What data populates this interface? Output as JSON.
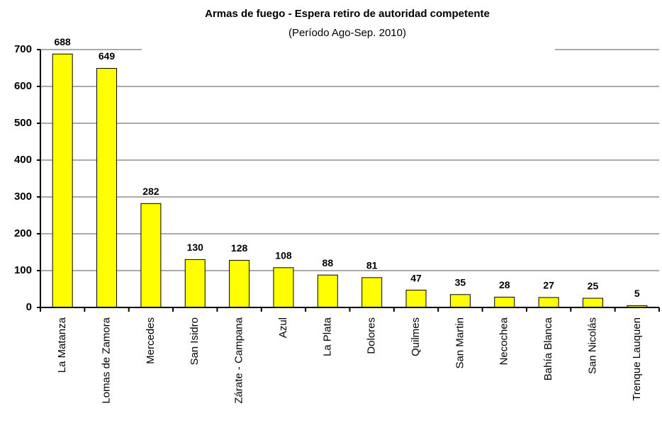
{
  "chart_data": {
    "type": "bar",
    "title": "Armas de fuego - Espera retiro de autoridad competente",
    "subtitle": "(Período Ago-Sep. 2010)",
    "categories": [
      "La Matanza",
      "Lomas de Zamora",
      "Mercedes",
      "San Isidro",
      "Zárate - Campana",
      "Azul",
      "La Plata",
      "Dolores",
      "Quilmes",
      "San Martin",
      "Necochea",
      "Bahía Blanca",
      "San Nicolás",
      "Trenque Lauquen"
    ],
    "values": [
      688,
      649,
      282,
      130,
      128,
      108,
      88,
      81,
      47,
      35,
      28,
      27,
      25,
      5
    ],
    "color": "#ffff00",
    "ylim": [
      0,
      700
    ],
    "yticks": [
      0,
      100,
      200,
      300,
      400,
      500,
      600,
      700
    ],
    "grid": true
  }
}
